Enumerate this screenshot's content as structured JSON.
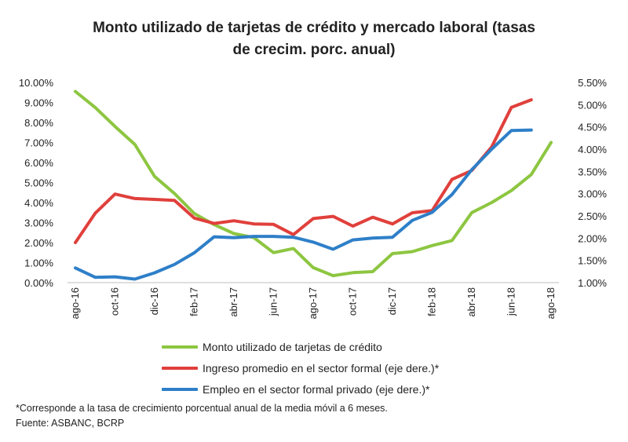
{
  "chart_data": {
    "type": "line",
    "title_line1": "Monto utilizado de tarjetas de crédito y mercado laboral (tasas",
    "title_line2": "de crecim. porc. anual)",
    "categories": [
      "ago-16",
      "sep-16",
      "oct-16",
      "nov-16",
      "dic-16",
      "ene-17",
      "feb-17",
      "mar-17",
      "abr-17",
      "may-17",
      "jun-17",
      "jul-17",
      "ago-17",
      "sep-17",
      "oct-17",
      "nov-17",
      "dic-17",
      "ene-18",
      "feb-18",
      "mar-18",
      "abr-18",
      "may-18",
      "jun-18",
      "jul-18",
      "ago-18"
    ],
    "x_tick_labels": [
      "ago-16",
      "oct-16",
      "dic-16",
      "feb-17",
      "abr-17",
      "jun-17",
      "ago-17",
      "oct-17",
      "dic-17",
      "feb-18",
      "abr-18",
      "jun-18",
      "ago-18"
    ],
    "y_left": {
      "min": 0,
      "max": 10,
      "step": 1,
      "ticks": [
        "0.00%",
        "1.00%",
        "2.00%",
        "3.00%",
        "4.00%",
        "5.00%",
        "6.00%",
        "7.00%",
        "8.00%",
        "9.00%",
        "10.00%"
      ]
    },
    "y_right": {
      "min": 1.0,
      "max": 5.5,
      "step": 0.5,
      "ticks": [
        "1.00%",
        "1.50%",
        "2.00%",
        "2.50%",
        "3.00%",
        "3.50%",
        "4.00%",
        "4.50%",
        "5.00%",
        "5.50%"
      ]
    },
    "grid": false,
    "legend_position": "bottom",
    "series": [
      {
        "name": "Monto utilizado de tarjetas de crédito",
        "axis": "left",
        "color": "#8dc641",
        "values": [
          9.55,
          8.75,
          7.8,
          6.9,
          5.3,
          4.45,
          3.45,
          2.9,
          2.45,
          2.25,
          1.5,
          1.7,
          0.75,
          0.35,
          0.5,
          0.55,
          1.45,
          1.55,
          1.85,
          2.1,
          3.5,
          4.0,
          4.6,
          5.4,
          7.0
        ]
      },
      {
        "name": "Ingreso promedio en el sector formal (eje dere.)*",
        "axis": "right",
        "color": "#e0403c",
        "values": [
          1.9,
          2.56,
          2.99,
          2.89,
          2.87,
          2.85,
          2.45,
          2.33,
          2.39,
          2.32,
          2.31,
          2.08,
          2.44,
          2.49,
          2.27,
          2.47,
          2.32,
          2.57,
          2.62,
          3.32,
          3.52,
          4.05,
          4.94,
          5.11,
          null
        ]
      },
      {
        "name": "Empleo en el sector formal privado (eje dere.)*",
        "axis": "right",
        "color": "#2e7fc8",
        "values": [
          1.33,
          1.12,
          1.13,
          1.08,
          1.22,
          1.41,
          1.67,
          2.03,
          2.01,
          2.04,
          2.04,
          2.02,
          1.91,
          1.75,
          1.96,
          2.0,
          2.02,
          2.4,
          2.58,
          2.98,
          3.54,
          4.0,
          4.42,
          4.43,
          null
        ]
      }
    ],
    "footnote": "*Corresponde a la tasa de crecimiento porcentual anual de la media móvil a 6 meses.",
    "source": "Fuente: ASBANC, BCRP"
  }
}
